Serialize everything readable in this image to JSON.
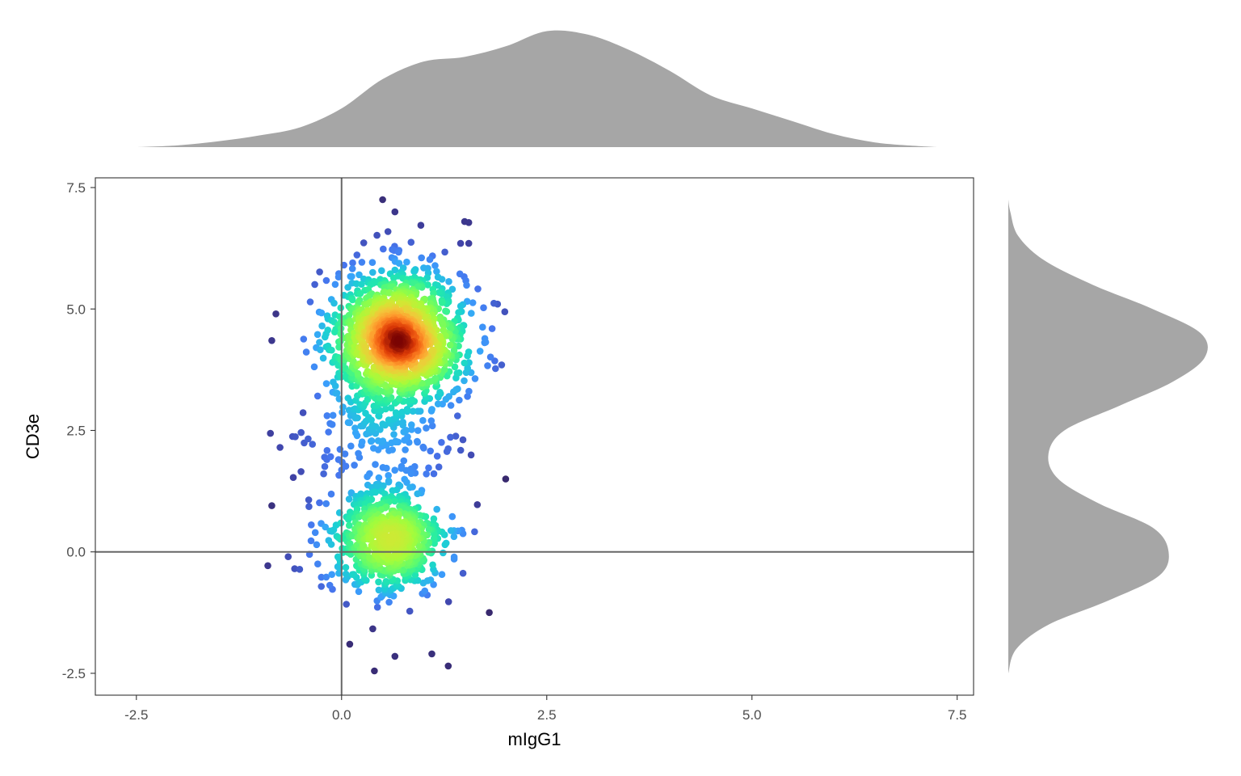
{
  "chart_data": {
    "type": "scatter",
    "title": "",
    "xlabel": "mIgG1",
    "ylabel": "CD3e",
    "xlim": [
      -3.0,
      7.7
    ],
    "ylim": [
      -2.95,
      7.7
    ],
    "x_ticks": [
      -2.5,
      0.0,
      2.5,
      5.0,
      7.5
    ],
    "y_ticks": [
      -2.5,
      0.0,
      2.5,
      5.0,
      7.5
    ],
    "x_tick_labels": [
      "-2.5",
      "0.0",
      "2.5",
      "5.0",
      "7.5"
    ],
    "y_tick_labels": [
      "-2.5",
      "0.0",
      "2.5",
      "5.0",
      "7.5"
    ],
    "reference_lines": {
      "x": 0,
      "y": 0
    },
    "grid": false,
    "point_color_encoding": "local point density (turbo palette: dark purple = low, dark red = high)",
    "clusters": [
      {
        "name": "upper",
        "center_x": 0.7,
        "center_y": 4.4,
        "sd_x": 0.4,
        "sd_y": 0.7,
        "approx_points": 1500
      },
      {
        "name": "lower",
        "center_x": 0.55,
        "center_y": 0.2,
        "sd_x": 0.35,
        "sd_y": 0.55,
        "approx_points": 700
      },
      {
        "name": "bridge",
        "center_x": 0.55,
        "center_y": 2.3,
        "sd_x": 0.45,
        "sd_y": 0.6,
        "approx_points": 160
      }
    ],
    "outliers": [
      {
        "x": 0.5,
        "y": 7.25
      },
      {
        "x": 0.65,
        "y": 7.0
      },
      {
        "x": 1.5,
        "y": 6.8
      },
      {
        "x": 1.55,
        "y": 6.78
      },
      {
        "x": 1.45,
        "y": 6.35
      },
      {
        "x": 1.55,
        "y": 6.35
      },
      {
        "x": 1.9,
        "y": 5.1
      },
      {
        "x": 1.95,
        "y": 3.85
      },
      {
        "x": 2.0,
        "y": 1.5
      },
      {
        "x": 1.8,
        "y": -1.25
      },
      {
        "x": 0.4,
        "y": -2.45
      },
      {
        "x": 1.3,
        "y": -2.35
      },
      {
        "x": 0.65,
        "y": -2.15
      },
      {
        "x": 1.1,
        "y": -2.1
      },
      {
        "x": 0.1,
        "y": -1.9
      },
      {
        "x": -0.8,
        "y": 4.9
      },
      {
        "x": -0.85,
        "y": 4.35
      },
      {
        "x": -0.75,
        "y": 2.15
      },
      {
        "x": -0.85,
        "y": 0.95
      },
      {
        "x": -0.65,
        "y": -0.1
      }
    ],
    "marginal_x": {
      "type": "density",
      "x": [
        -2.5,
        -2.0,
        -1.5,
        -1.0,
        -0.5,
        0.0,
        0.5,
        1.0,
        1.5,
        2.0,
        2.5,
        3.0,
        3.5,
        4.0,
        4.5,
        5.0,
        5.5,
        6.0,
        6.5,
        7.0,
        7.25
      ],
      "density": [
        0.0,
        0.015,
        0.05,
        0.1,
        0.17,
        0.33,
        0.58,
        0.73,
        0.77,
        0.86,
        0.99,
        0.96,
        0.83,
        0.65,
        0.44,
        0.33,
        0.22,
        0.11,
        0.04,
        0.01,
        0.0
      ],
      "color": "#a6a6a6"
    },
    "marginal_y": {
      "type": "density",
      "y": [
        -2.5,
        -2.0,
        -1.5,
        -1.0,
        -0.5,
        0.0,
        0.5,
        1.0,
        1.5,
        2.0,
        2.5,
        3.0,
        3.5,
        4.0,
        4.5,
        5.0,
        5.5,
        6.0,
        6.5,
        7.0,
        7.25
      ],
      "density": [
        0.0,
        0.04,
        0.2,
        0.5,
        0.75,
        0.8,
        0.72,
        0.45,
        0.25,
        0.2,
        0.28,
        0.55,
        0.82,
        0.98,
        0.96,
        0.72,
        0.42,
        0.18,
        0.05,
        0.01,
        0.0
      ],
      "color": "#a6a6a6"
    }
  }
}
